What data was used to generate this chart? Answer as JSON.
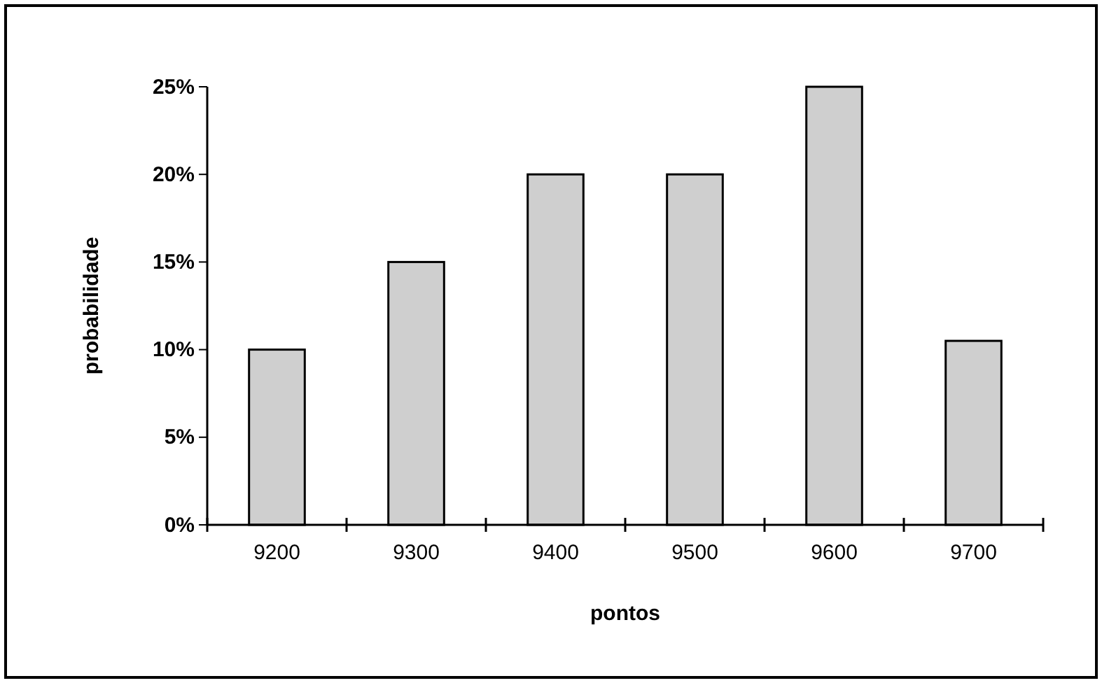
{
  "chart_data": {
    "type": "bar",
    "xlabel": "pontos",
    "ylabel": "probabilidade",
    "categories": [
      "9200",
      "9300",
      "9400",
      "9500",
      "9600",
      "9700"
    ],
    "values": [
      10,
      15,
      20,
      20,
      25,
      10.5
    ],
    "color": "#cfcfcf",
    "ylim": [
      0,
      25
    ],
    "yticks": [
      {
        "value": 0,
        "label": "0%"
      },
      {
        "value": 5,
        "label": "5%"
      },
      {
        "value": 10,
        "label": "10%"
      },
      {
        "value": 15,
        "label": "15%"
      },
      {
        "value": 20,
        "label": "20%"
      },
      {
        "value": 25,
        "label": "25%"
      }
    ],
    "grid": false
  }
}
